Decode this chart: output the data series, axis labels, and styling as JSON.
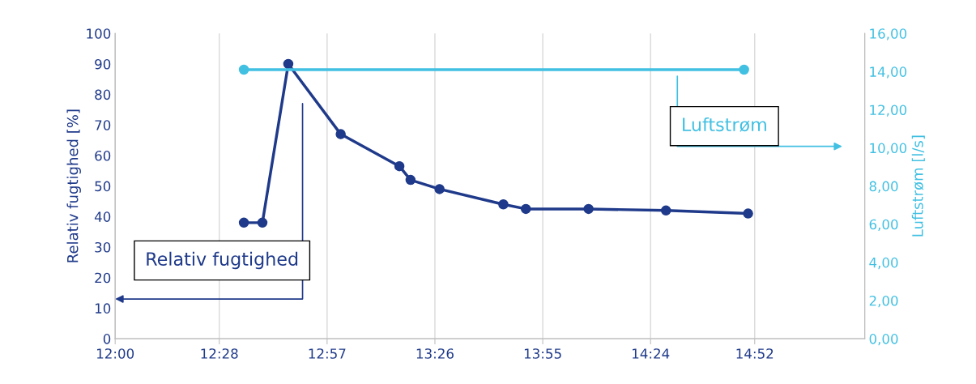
{
  "chart_data": {
    "type": "line",
    "ylabel": "Relativ fugtighed [%]",
    "y2label": "Luftstrøm [l/s]",
    "xlim": [
      12.0,
      15.36
    ],
    "xticks": [
      {
        "value": 12.0,
        "label": "12:00"
      },
      {
        "value": 12.4667,
        "label": "12:28"
      },
      {
        "value": 12.95,
        "label": "12:57"
      },
      {
        "value": 13.4333,
        "label": "13:26"
      },
      {
        "value": 13.9167,
        "label": "13:55"
      },
      {
        "value": 14.4,
        "label": "14:24"
      },
      {
        "value": 14.8667,
        "label": "14:52"
      }
    ],
    "ylim": [
      0,
      100
    ],
    "yticks": [
      0,
      10,
      20,
      30,
      40,
      50,
      60,
      70,
      80,
      90,
      100
    ],
    "y2lim": [
      0,
      16
    ],
    "y2ticks": [
      {
        "value": 0,
        "label": "0,00"
      },
      {
        "value": 2,
        "label": "2,00"
      },
      {
        "value": 4,
        "label": "4,00"
      },
      {
        "value": 6,
        "label": "6,00"
      },
      {
        "value": 8,
        "label": "8,00"
      },
      {
        "value": 10,
        "label": "10,00"
      },
      {
        "value": 12,
        "label": "12,00"
      },
      {
        "value": 14,
        "label": "14,00"
      },
      {
        "value": 16,
        "label": "16,00"
      }
    ],
    "grid": "x",
    "marker": "circle",
    "line_style": "solid",
    "legend": false,
    "series": [
      {
        "name": "Relativ fugtighed",
        "color": "#1f3a8a",
        "x": [
          12.577,
          12.66,
          12.776,
          13.011,
          13.274,
          13.324,
          13.454,
          13.74,
          13.841,
          14.122,
          14.469,
          14.837
        ],
        "values": [
          38,
          38,
          90,
          67,
          56.5,
          52,
          49,
          44,
          42.5,
          42.5,
          42,
          41
        ]
      },
      {
        "name": "Luftstrøm",
        "color": "#41c0e2",
        "axis": "y2",
        "x": [
          12.577,
          14.819
        ],
        "values": [
          14.1,
          14.1
        ]
      }
    ]
  }
}
